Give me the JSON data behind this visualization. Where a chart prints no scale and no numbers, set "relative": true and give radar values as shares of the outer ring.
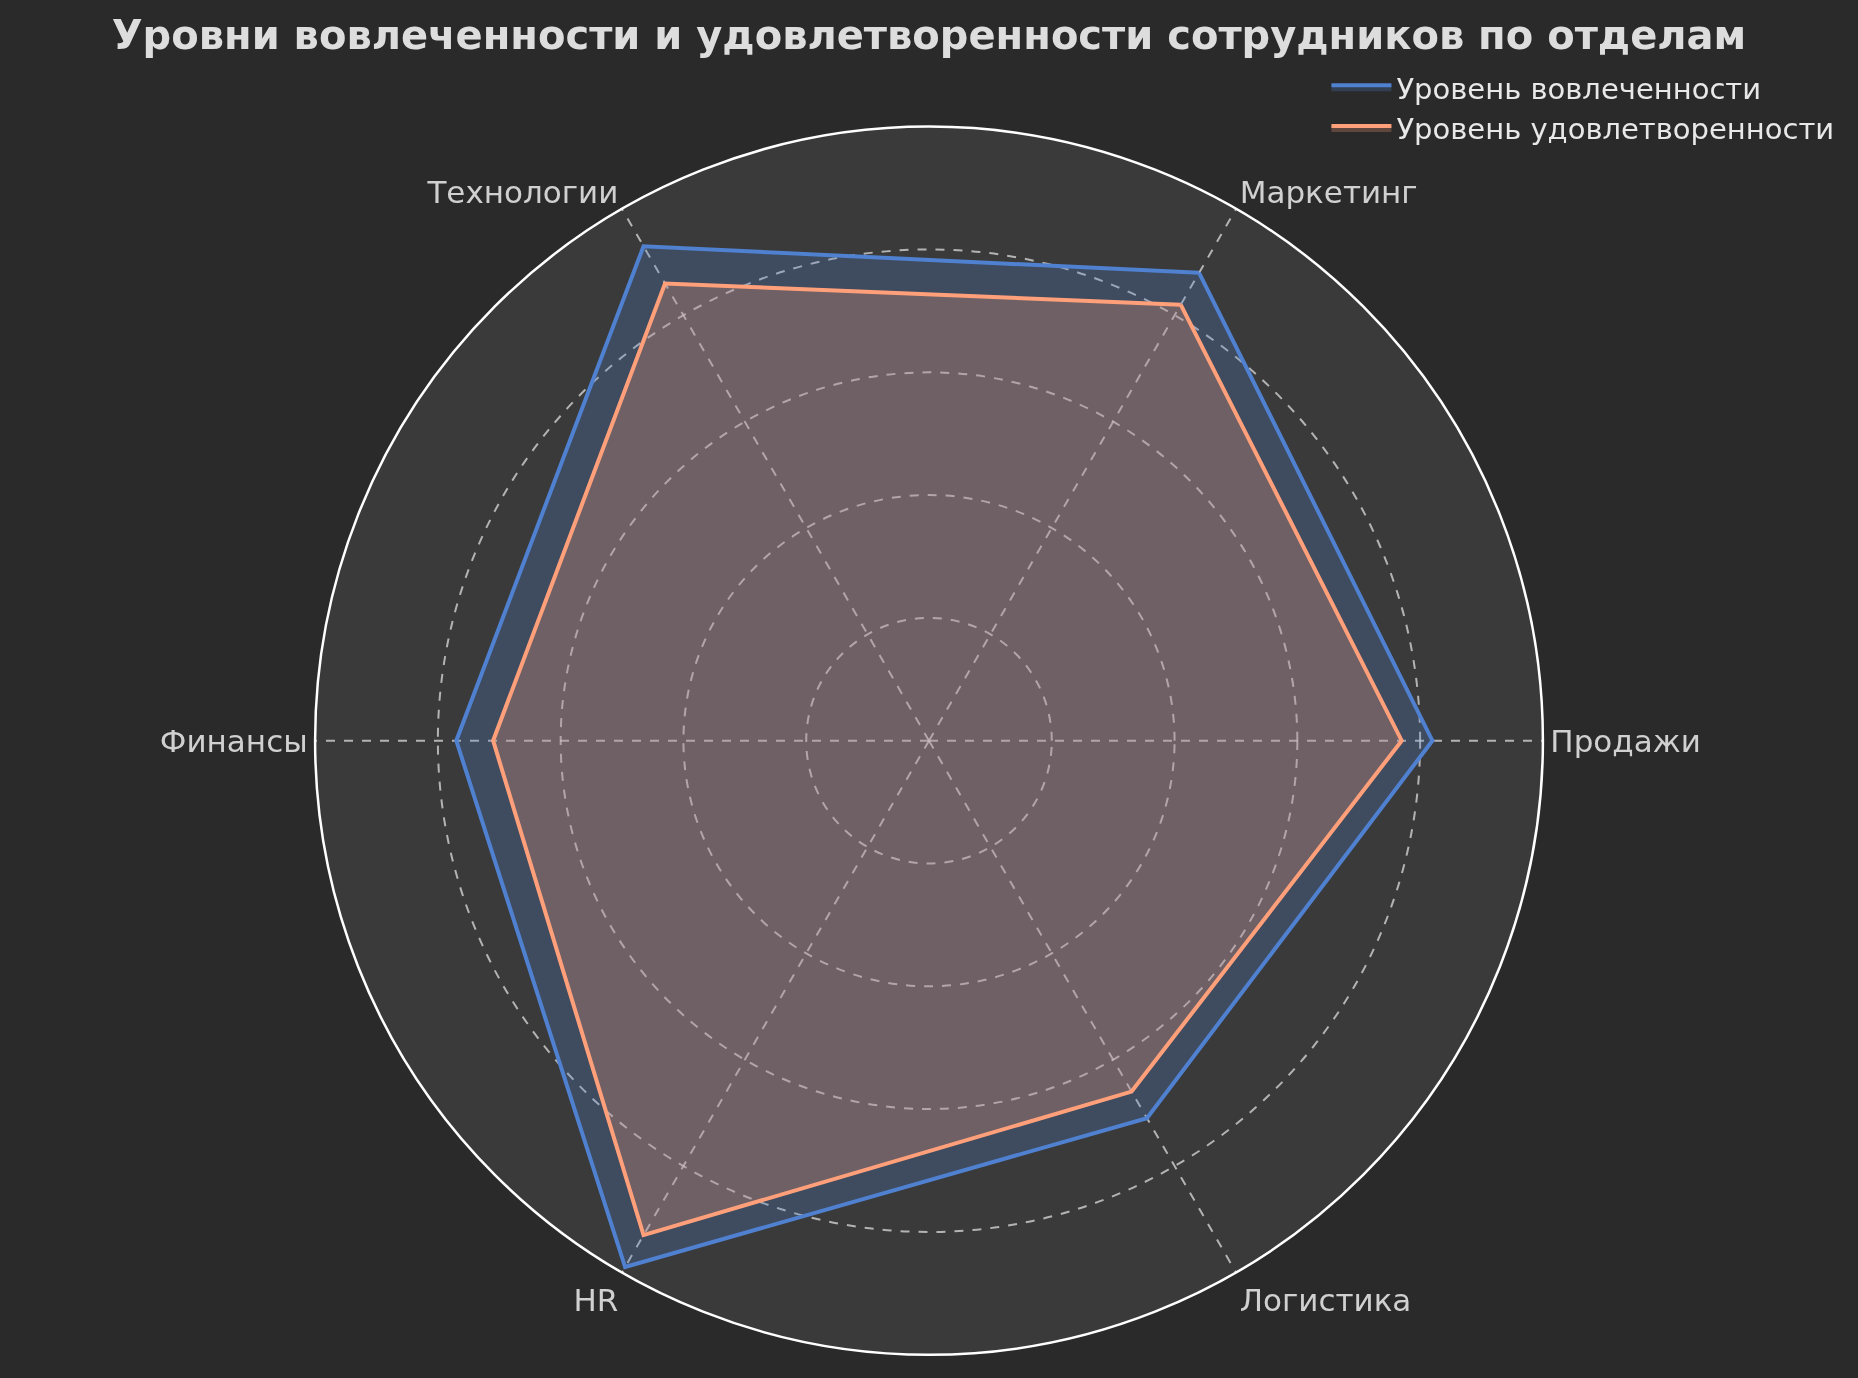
{
  "chart_data": {
    "type": "radar",
    "title": "Уровни вовлеченности и удовлетворенности сотрудников по отделам",
    "categories": [
      "Маркетинг",
      "Продажи",
      "Логистика",
      "HR",
      "Финансы",
      "Технологии"
    ],
    "relative": true,
    "series": [
      {
        "name": "Уровень вовлеченности",
        "color": "#4f81d0",
        "values": [
          0.88,
          0.82,
          0.71,
          0.99,
          0.77,
          0.93
        ]
      },
      {
        "name": "Уровень удовлетворенности",
        "color": "#ffa07a",
        "values": [
          0.82,
          0.77,
          0.66,
          0.93,
          0.71,
          0.86
        ]
      }
    ],
    "grid": true,
    "legend": "top right",
    "line_style": "solid"
  }
}
